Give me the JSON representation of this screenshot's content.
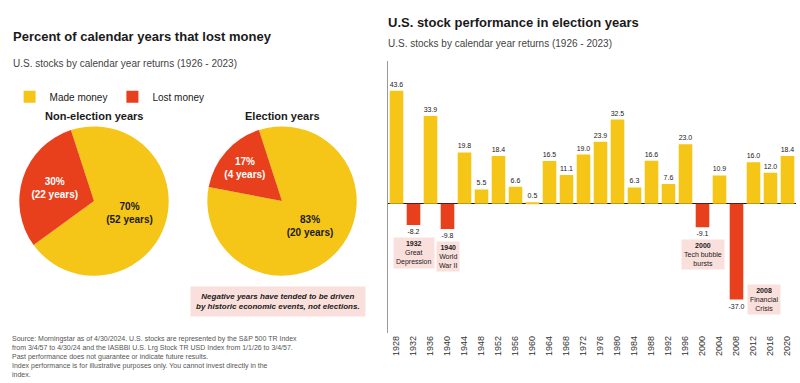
{
  "chart_data": [
    {
      "type": "pie",
      "title": "Percent of calendar years that lost money",
      "subtitle": "U.S. stocks by calendar year returns (1926 - 2023)",
      "label": "Non-election years",
      "categories": [
        "Made money",
        "Lost money"
      ],
      "values": [
        70,
        30
      ],
      "value_labels": [
        "70%\n(52 years)",
        "30%\n(22 years)"
      ],
      "colors": [
        "#F5C518",
        "#E8401C"
      ],
      "data_labels": true,
      "legend": "top left",
      "annotations": [
        {
          "text": "Source: Morningstar as of 4/30/2024. U.S. stocks are represented by the S&P 500 TR Index from 3/4/57 to 4/30/24 and the IASBBI U.S. Lrg Stock TR USD Index from 1/1/26 to 3/4/57. Past performance does not guarantee or indicate future results.\nIndex performance is for illustrative purposes only. You cannot invest directly in the index."
        }
      ]
    },
    {
      "type": "pie",
      "label": "Election years",
      "categories": [
        "Made money",
        "Lost money"
      ],
      "values": [
        83,
        17
      ],
      "value_labels": [
        "83%\n(20 years)",
        "17%\n(4 years)"
      ],
      "colors": [
        "#F5C518",
        "#E8401C"
      ],
      "data_labels": true,
      "annotations": [
        {
          "text": "Negative years have tended to be driven\nby historic economic events, not elections.",
          "color": "#FAE0DC"
        }
      ]
    },
    {
      "type": "bar",
      "title": "U.S. stock performance in election years",
      "subtitle": "U.S. stocks by calendar year returns (1926 - 2023)",
      "categories": [
        "1928",
        "1932",
        "1936",
        "1940",
        "1944",
        "1948",
        "1952",
        "1956",
        "1960",
        "1964",
        "1968",
        "1972",
        "1976",
        "1980",
        "1984",
        "1988",
        "1992",
        "1996",
        "2000",
        "2004",
        "2008",
        "2012",
        "2016",
        "2020"
      ],
      "values": [
        43.6,
        -8.2,
        33.9,
        -9.8,
        19.8,
        5.5,
        18.4,
        6.6,
        0.5,
        16.5,
        11.1,
        19.0,
        23.9,
        32.5,
        6.3,
        16.6,
        7.6,
        23.0,
        -9.1,
        10.9,
        -37.0,
        16.0,
        12.0,
        18.4
      ],
      "value_labels": [
        "43.6",
        "-8.2",
        "33.9",
        "-9.8",
        "19.8",
        "5.5",
        "18.4",
        "6.6",
        "0.5",
        "16.5",
        "11.1",
        "19.0",
        "23.9",
        "32.5",
        "6.3",
        "16.6",
        "7.6",
        "23.0",
        "-9.1",
        "10.9",
        "-37.0",
        "16.0",
        "12.0",
        "18.4"
      ],
      "colors": [
        "#F5C518",
        "#E8401C",
        "#F5C518",
        "#E8401C",
        "#F5C518",
        "#F5C518",
        "#F5C518",
        "#F5C518",
        "#F5C518",
        "#F5C518",
        "#F5C518",
        "#F5C518",
        "#F5C518",
        "#F5C518",
        "#F5C518",
        "#F5C518",
        "#F5C518",
        "#F5C518",
        "#E8401C",
        "#F5C518",
        "#E8401C",
        "#F5C518",
        "#F5C518",
        "#F5C518"
      ],
      "ylim": [
        -50,
        55
      ],
      "grid": false,
      "tick_labels": "x",
      "data_labels": true,
      "annotations": [
        {
          "x": "1932",
          "label": "1932",
          "text": "Great\nDepression",
          "color": "#FAE0DC"
        },
        {
          "x": "1940",
          "label": "1940",
          "text": "World\nWar II",
          "color": "#FAE0DC"
        },
        {
          "x": "2000",
          "label": "2000",
          "text": "Tech bubble\nbursts",
          "color": "#FAE0DC"
        },
        {
          "x": "2008",
          "label": "2008",
          "text": "Financial\nCrisis",
          "color": "#FAE0DC"
        }
      ]
    }
  ]
}
